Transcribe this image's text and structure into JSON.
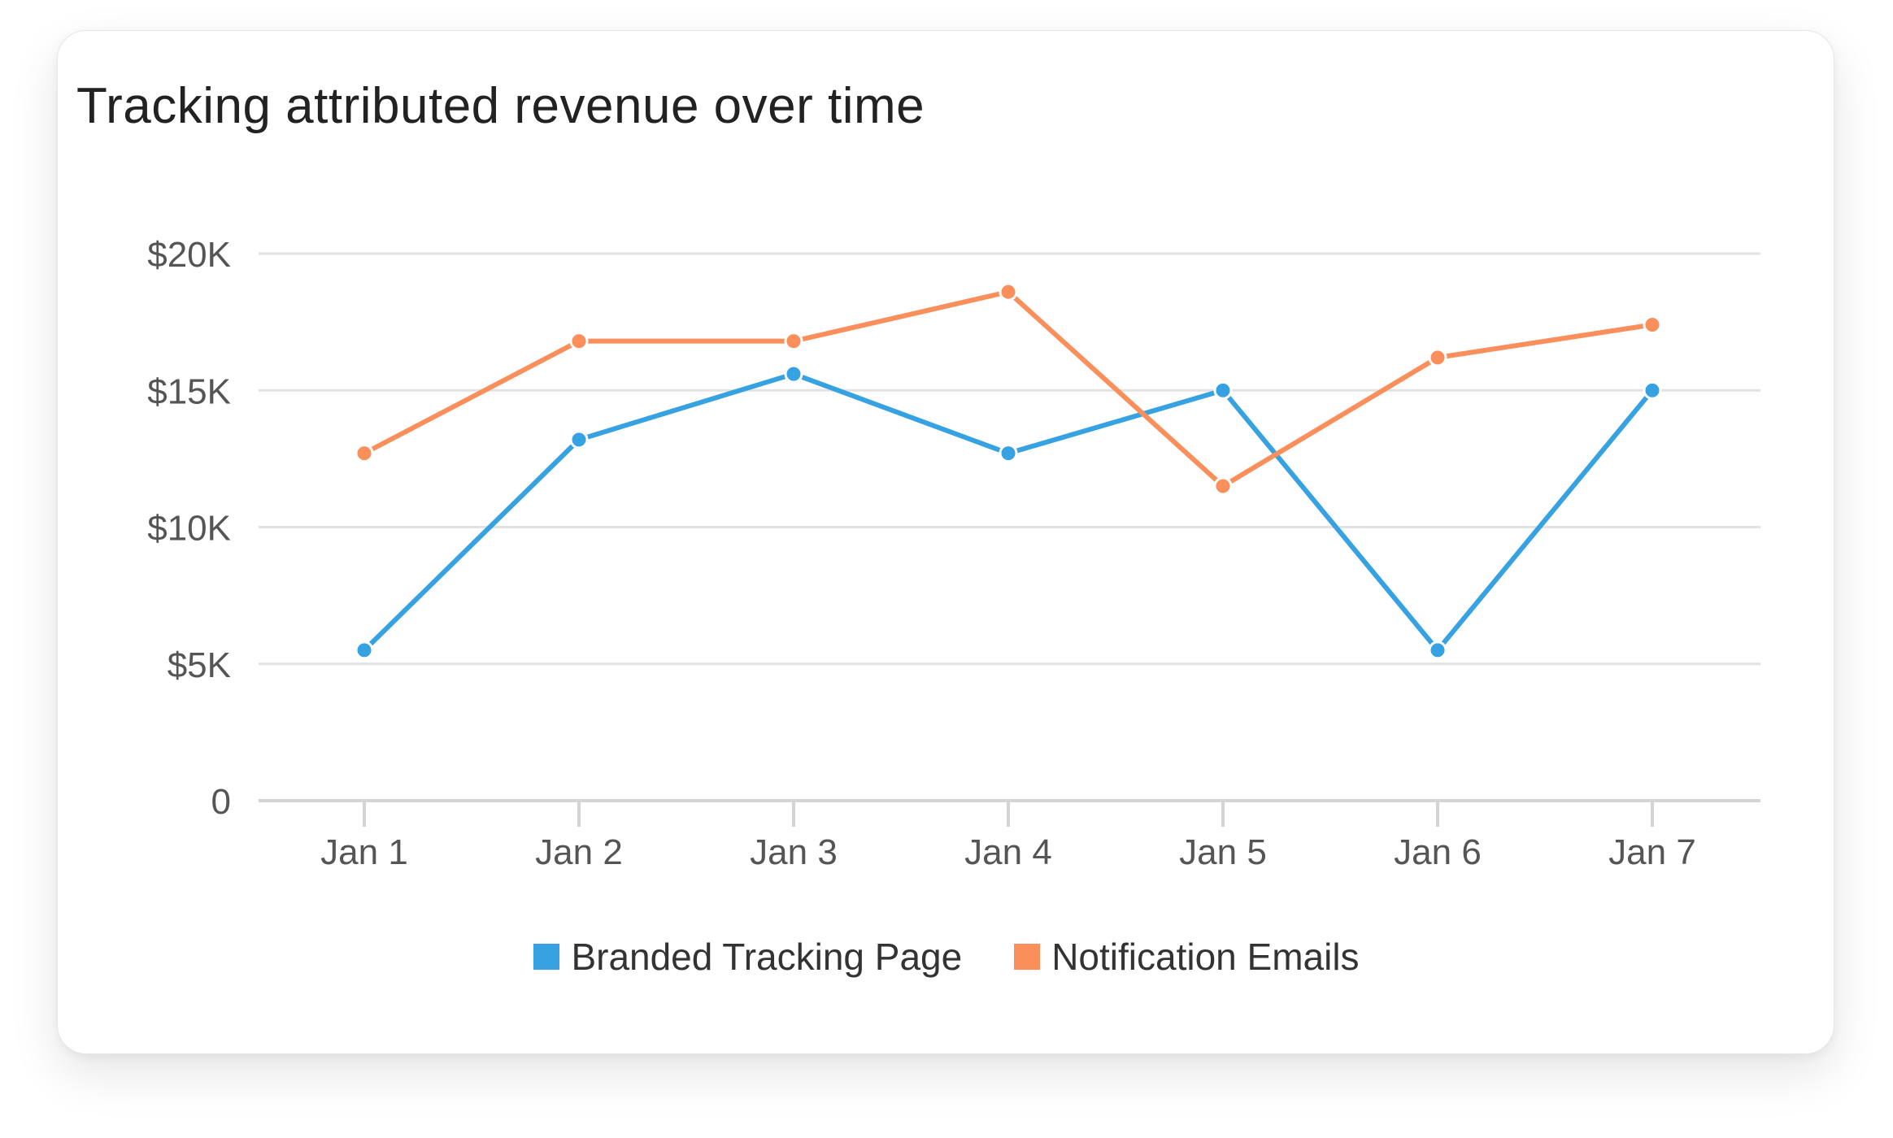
{
  "chart_data": {
    "type": "line",
    "title": "Tracking attributed revenue over time",
    "xlabel": "",
    "ylabel": "",
    "categories": [
      "Jan 1",
      "Jan 2",
      "Jan 3",
      "Jan 4",
      "Jan 5",
      "Jan 6",
      "Jan 7"
    ],
    "ylim": [
      0,
      20000
    ],
    "yticks": [
      {
        "value": 0,
        "label": "0"
      },
      {
        "value": 5000,
        "label": "$5K"
      },
      {
        "value": 10000,
        "label": "$10K"
      },
      {
        "value": 15000,
        "label": "$15K"
      },
      {
        "value": 20000,
        "label": "$20K"
      }
    ],
    "grid": true,
    "legend_position": "bottom",
    "series": [
      {
        "name": "Branded Tracking Page",
        "color": "#36a2e2",
        "values": [
          5500,
          13200,
          15600,
          12700,
          15000,
          5500,
          15000
        ]
      },
      {
        "name": "Notification Emails",
        "color": "#fb8f5c",
        "values": [
          12700,
          16800,
          16800,
          18600,
          11500,
          16200,
          17400
        ]
      }
    ]
  },
  "colors": {
    "grid": "#e2e2e2",
    "axis": "#d4d4d4",
    "tick_text": "#555555"
  }
}
